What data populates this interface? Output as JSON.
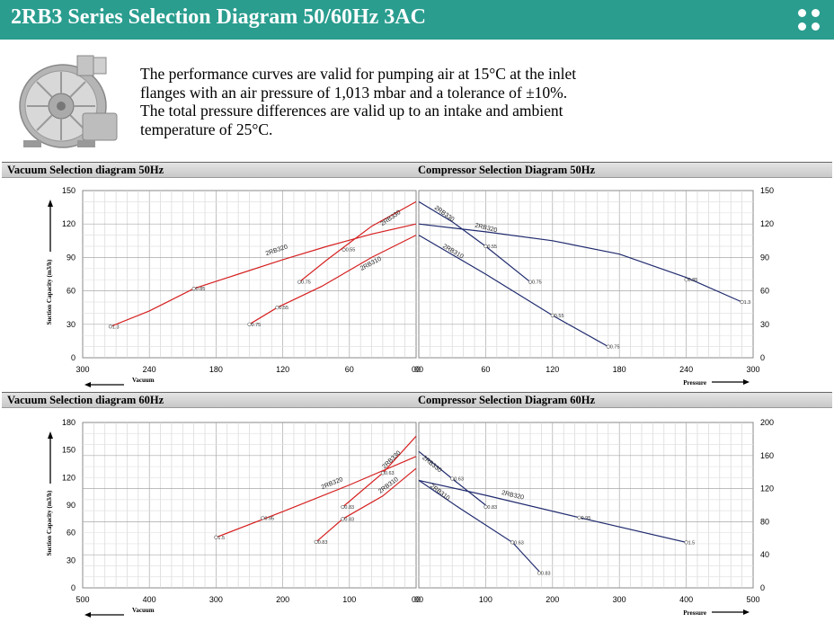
{
  "header": {
    "title": "2RB3 Series Selection Diagram 50/60Hz 3AC",
    "background": "#2a9d8f"
  },
  "intro": {
    "text": "The performance curves are valid for pumping air at 15°C at the inlet flanges with an air pressure of 1,013 mbar and a tolerance of ±10%. The total pressure differences are valid up to an intake and ambient temperature of 25°C."
  },
  "panels": {
    "vac50_title": "Vacuum Selection diagram 50Hz",
    "comp50_title": "Compressor Selection Diagram 50Hz",
    "vac60_title": "Vacuum Selection diagram 60Hz",
    "comp60_title": "Compressor Selection Diagram 60Hz"
  },
  "chart_data": [
    {
      "id": "vac50",
      "type": "line",
      "title": "Vacuum Selection diagram 50Hz",
      "xlabel": "Vacuum",
      "ylabel": "Suction Capacity (m3/h)",
      "xlim": [
        300,
        0
      ],
      "ylim": [
        0,
        150
      ],
      "xticks": [
        "300",
        "240",
        "180",
        "120",
        "60",
        "00"
      ],
      "yticks": [
        "0",
        "30",
        "60",
        "90",
        "120",
        "150"
      ],
      "color": "#d62020",
      "series": [
        {
          "name": "2RB320",
          "points": [
            [
              0,
              120
            ],
            [
              40,
              111
            ],
            [
              80,
              100
            ],
            [
              120,
              88
            ],
            [
              160,
              75
            ],
            [
              200,
              62
            ],
            [
              240,
              42
            ],
            [
              275,
              28
            ]
          ],
          "labels": [
            {
              "x": 200,
              "y": 62,
              "text": "0.85"
            },
            {
              "x": 65,
              "y": 97,
              "text": "0.55"
            },
            {
              "x": 275,
              "y": 28,
              "text": "1.3"
            }
          ],
          "name_at": [
            125,
            95
          ]
        },
        {
          "name": "2RB310",
          "points": [
            [
              0,
              110
            ],
            [
              40,
              90
            ],
            [
              85,
              64
            ],
            [
              125,
              45
            ],
            [
              150,
              30
            ]
          ],
          "labels": [
            {
              "x": 125,
              "y": 45,
              "text": "0.55"
            },
            {
              "x": 150,
              "y": 30,
              "text": "0.75"
            }
          ],
          "name_at": [
            40,
            83
          ]
        },
        {
          "name": "2RB330",
          "points": [
            [
              0,
              140
            ],
            [
              40,
              118
            ],
            [
              80,
              88
            ],
            [
              105,
              68
            ]
          ],
          "labels": [
            {
              "x": 105,
              "y": 68,
              "text": "0.75"
            }
          ],
          "name_at": [
            22,
            124
          ]
        }
      ]
    },
    {
      "id": "comp50",
      "type": "line",
      "title": "Compressor Selection Diagram 50Hz",
      "xlabel": "Pressure",
      "xlim": [
        0,
        300
      ],
      "ylim": [
        0,
        150
      ],
      "xticks": [
        "00",
        "60",
        "120",
        "180",
        "240",
        "300"
      ],
      "yticks": [
        "0",
        "30",
        "60",
        "90",
        "120",
        "150"
      ],
      "color": "#1f2a6e",
      "series": [
        {
          "name": "2RB320",
          "points": [
            [
              0,
              120
            ],
            [
              60,
              113
            ],
            [
              120,
              105
            ],
            [
              180,
              93
            ],
            [
              240,
              72
            ],
            [
              290,
              50
            ]
          ],
          "labels": [
            {
              "x": 240,
              "y": 70,
              "text": "0.85"
            },
            {
              "x": 290,
              "y": 50,
              "text": "1.3"
            }
          ],
          "name_at": [
            60,
            115
          ]
        },
        {
          "name": "2RB330",
          "points": [
            [
              0,
              140
            ],
            [
              30,
              122
            ],
            [
              60,
              100
            ],
            [
              100,
              68
            ]
          ],
          "labels": [
            {
              "x": 60,
              "y": 100,
              "text": "0.55"
            },
            {
              "x": 100,
              "y": 68,
              "text": "0.75"
            }
          ],
          "name_at": [
            22,
            128
          ]
        },
        {
          "name": "2RB310",
          "points": [
            [
              0,
              110
            ],
            [
              60,
              75
            ],
            [
              120,
              38
            ],
            [
              170,
              10
            ]
          ],
          "labels": [
            {
              "x": 120,
              "y": 38,
              "text": "0.55"
            },
            {
              "x": 170,
              "y": 10,
              "text": "0.75"
            }
          ],
          "name_at": [
            30,
            94
          ]
        }
      ]
    },
    {
      "id": "vac60",
      "type": "line",
      "title": "Vacuum Selection diagram 60Hz",
      "xlabel": "Vacuum",
      "ylabel": "Suction Capacity (m3/h)",
      "xlim": [
        500,
        0
      ],
      "ylim": [
        0,
        180
      ],
      "xticks": [
        "500",
        "400",
        "300",
        "200",
        "100",
        "00"
      ],
      "yticks": [
        "0",
        "30",
        "60",
        "90",
        "120",
        "150",
        "180"
      ],
      "color": "#d62020",
      "series": [
        {
          "name": "2RB320",
          "points": [
            [
              0,
              143
            ],
            [
              100,
              112
            ],
            [
              200,
              83
            ],
            [
              300,
              55
            ]
          ],
          "labels": [
            {
              "x": 230,
              "y": 76,
              "text": "0.95"
            },
            {
              "x": 300,
              "y": 55,
              "text": "1.5"
            }
          ],
          "name_at": [
            125,
            112
          ]
        },
        {
          "name": "2RB310",
          "points": [
            [
              0,
              130
            ],
            [
              50,
              100
            ],
            [
              110,
              75
            ],
            [
              150,
              50
            ]
          ],
          "labels": [
            {
              "x": 110,
              "y": 75,
              "text": "0.83"
            },
            {
              "x": 150,
              "y": 50,
              "text": "0.83"
            }
          ],
          "name_at": [
            40,
            110
          ]
        },
        {
          "name": "2RB330",
          "points": [
            [
              0,
              165
            ],
            [
              50,
              125
            ],
            [
              110,
              88
            ]
          ],
          "labels": [
            {
              "x": 50,
              "y": 125,
              "text": "0.63"
            },
            {
              "x": 110,
              "y": 88,
              "text": "0.83"
            }
          ],
          "name_at": [
            35,
            138
          ]
        }
      ]
    },
    {
      "id": "comp60",
      "type": "line",
      "title": "Compressor Selection Diagram 60Hz",
      "xlabel": "Pressure",
      "xlim": [
        0,
        500
      ],
      "ylim": [
        0,
        200
      ],
      "xticks": [
        "00",
        "100",
        "200",
        "300",
        "400",
        "500"
      ],
      "yticks": [
        "0",
        "40",
        "80",
        "120",
        "160",
        "200"
      ],
      "color": "#1f2a6e",
      "series": [
        {
          "name": "2RB320",
          "points": [
            [
              0,
              130
            ],
            [
              100,
              112
            ],
            [
              240,
              85
            ],
            [
              400,
              55
            ]
          ],
          "labels": [
            {
              "x": 240,
              "y": 85,
              "text": "0.95"
            },
            {
              "x": 400,
              "y": 55,
              "text": "1.5"
            }
          ],
          "name_at": [
            140,
            110
          ]
        },
        {
          "name": "2RB330",
          "points": [
            [
              0,
              165
            ],
            [
              50,
              132
            ],
            [
              100,
              100
            ]
          ],
          "labels": [
            {
              "x": 50,
              "y": 132,
              "text": "0.63"
            },
            {
              "x": 100,
              "y": 98,
              "text": "0.83"
            }
          ],
          "name_at": [
            18,
            148
          ]
        },
        {
          "name": "2RB310",
          "points": [
            [
              0,
              130
            ],
            [
              60,
              97
            ],
            [
              140,
              55
            ],
            [
              180,
              20
            ]
          ],
          "labels": [
            {
              "x": 140,
              "y": 55,
              "text": "0.63"
            },
            {
              "x": 180,
              "y": 18,
              "text": "0.83"
            }
          ],
          "name_at": [
            30,
            114
          ]
        }
      ]
    }
  ]
}
